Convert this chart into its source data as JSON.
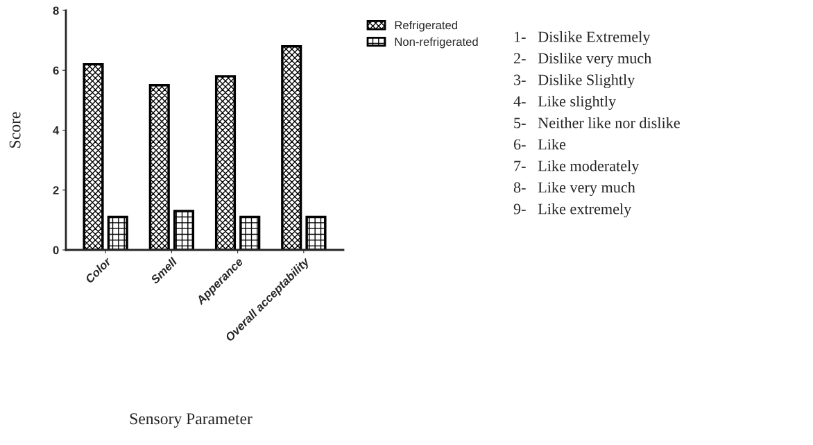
{
  "chart_data": {
    "type": "bar",
    "xlabel": "Sensory Parameter",
    "ylabel": "Score",
    "categories": [
      "Color",
      "Smell",
      "Apperance",
      "Overall acceptability"
    ],
    "series": [
      {
        "name": "Refrigerated",
        "color": "#000000",
        "values": [
          6.2,
          5.5,
          5.8,
          6.8
        ]
      },
      {
        "name": "Non-refrigerated",
        "color": "#000000",
        "values": [
          1.1,
          1.3,
          1.1,
          1.1
        ]
      }
    ],
    "ylim": [
      0,
      8
    ],
    "yticks": [
      0,
      2,
      4,
      6,
      8
    ],
    "grid": false,
    "legend": "top right",
    "annotations": [
      "1-   Dislike Extremely",
      "2-   Dislike very much",
      "3-   Dislike Slightly",
      "4-   Like slightly",
      "5-   Neither like nor dislike",
      "6-   Like",
      "7-   Like moderately",
      "8-   Like very much",
      "9-   Like extremely"
    ]
  }
}
